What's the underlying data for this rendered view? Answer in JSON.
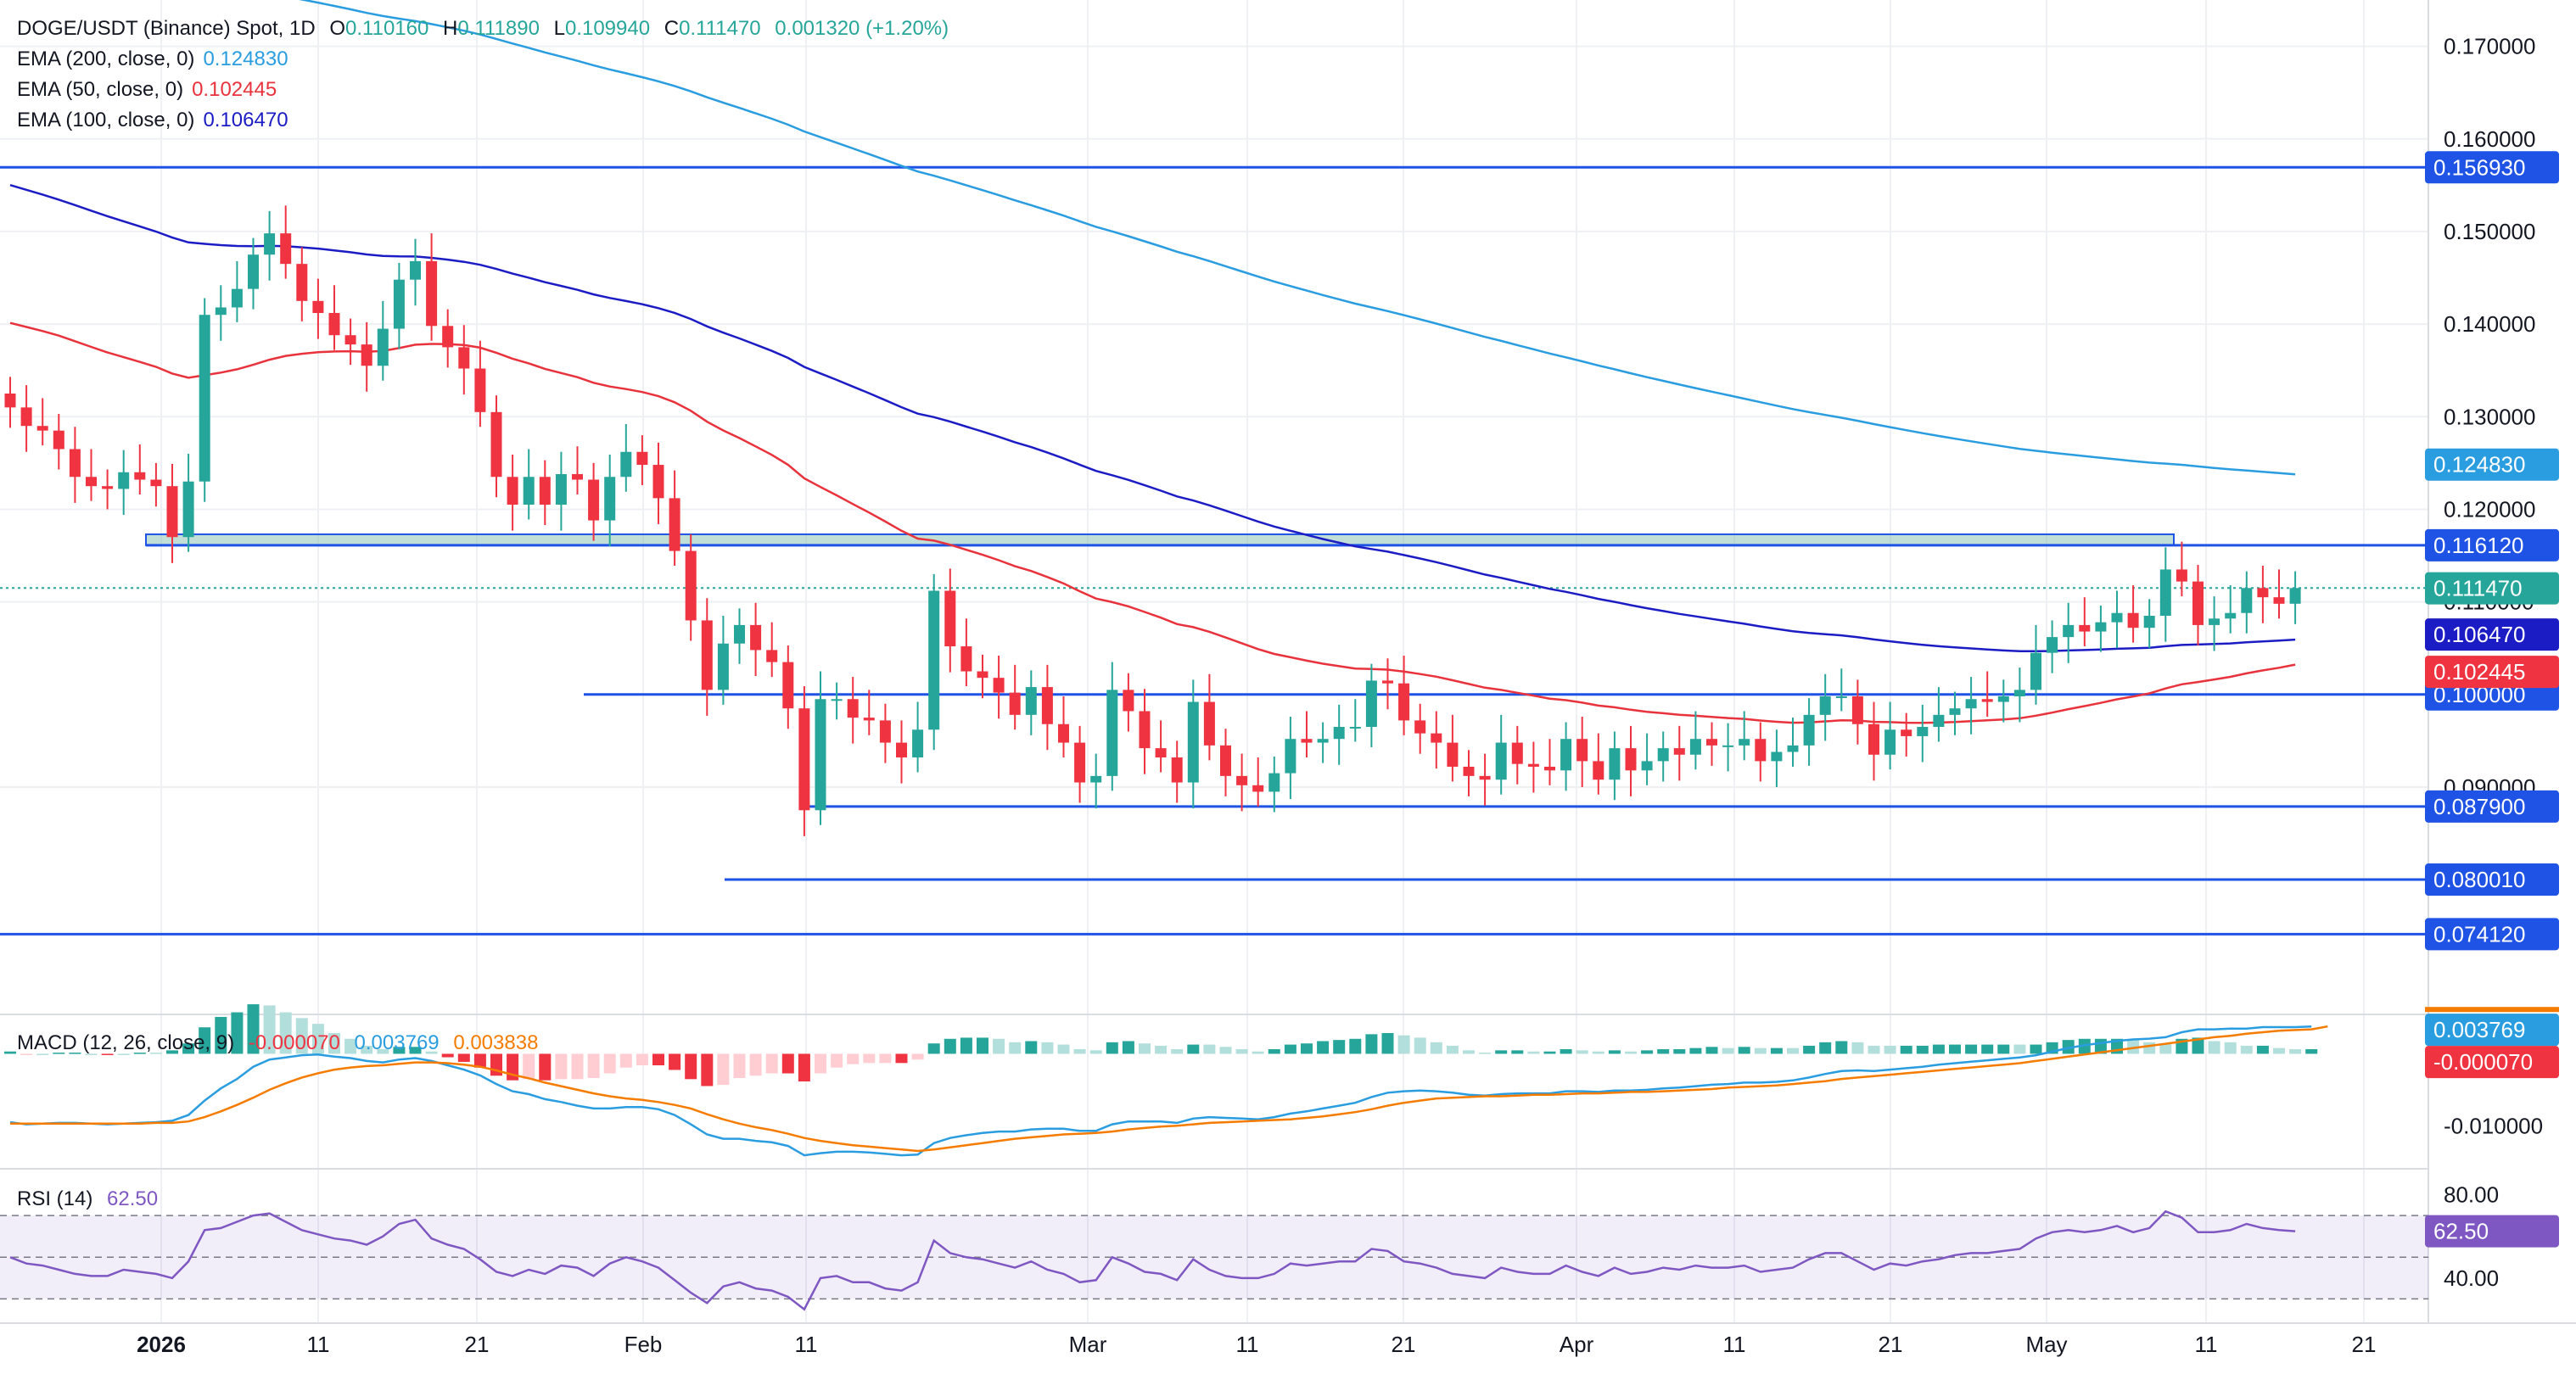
{
  "header": {
    "symbol": "DOGE/USDT (Binance) Spot, 1D",
    "open_label": "O",
    "open": "0.110160",
    "high_label": "H",
    "high": "0.111890",
    "low_label": "L",
    "low": "0.109940",
    "close_label": "C",
    "close": "0.111470",
    "change": "0.001320 (+1.20%)"
  },
  "indicators": {
    "ema200": {
      "label": "EMA (200, close, 0)",
      "value": "0.124830",
      "color": "#2a9de0"
    },
    "ema50": {
      "label": "EMA (50, close, 0)",
      "value": "0.102445",
      "color": "#e8323c"
    },
    "ema100": {
      "label": "EMA (100, close, 0)",
      "value": "0.106470",
      "color": "#1c1cc4"
    },
    "macd": {
      "label": "MACD (12, 26, close, 9)",
      "hist": "-0.000070",
      "macd": "0.003769",
      "signal": "0.003838"
    },
    "rsi": {
      "label": "RSI (14)",
      "value": "62.50"
    }
  },
  "colors": {
    "up": "#26a69a",
    "down": "#ef3340",
    "level": "#1e53e5",
    "zone": "#8ec5b4",
    "rsi": "#7e57c2",
    "macd_line": "#2a9de0",
    "signal_line": "#f57c00"
  },
  "chart_data": {
    "type": "candlestick",
    "x_ticks": [
      "2026",
      "11",
      "21",
      "Feb",
      "11",
      "Mar",
      "11",
      "21",
      "Apr",
      "11",
      "21",
      "May",
      "11",
      "21"
    ],
    "y_ticks": [
      "0.170000",
      "0.160000",
      "0.150000",
      "0.140000",
      "0.130000",
      "0.120000",
      "0.110000",
      "0.090000"
    ],
    "price_scale": {
      "min": 0.066,
      "max": 0.175
    },
    "horizontal_levels": [
      "0.156930",
      "0.116120",
      "0.100000",
      "0.087900",
      "0.080010",
      "0.074120"
    ],
    "level_values": [
      0.15693,
      0.11612,
      0.1,
      0.0879,
      0.08001,
      0.07412
    ],
    "resistance_zone": {
      "low": 0.11612,
      "high": 0.1173
    },
    "price_badges": {
      "ema200": "0.124830",
      "close": "0.111470",
      "ema100": "0.106470",
      "ema50": "0.102445"
    },
    "close_series": [
      0.131,
      0.129,
      0.1285,
      0.1265,
      0.1235,
      0.1225,
      0.1222,
      0.124,
      0.1232,
      0.1225,
      0.117,
      0.123,
      0.141,
      0.1418,
      0.1438,
      0.1475,
      0.1498,
      0.1465,
      0.1425,
      0.1412,
      0.1388,
      0.1378,
      0.1355,
      0.1395,
      0.1448,
      0.1468,
      0.1398,
      0.1375,
      0.1352,
      0.1305,
      0.1235,
      0.1205,
      0.1235,
      0.1205,
      0.1238,
      0.1232,
      0.1188,
      0.1235,
      0.1262,
      0.1248,
      0.1212,
      0.1155,
      0.108,
      0.1005,
      0.1055,
      0.1075,
      0.1048,
      0.1035,
      0.0985,
      0.0875,
      0.0995,
      0.0995,
      0.0975,
      0.0972,
      0.0948,
      0.0932,
      0.0962,
      0.1112,
      0.1052,
      0.1025,
      0.1018,
      0.1002,
      0.0978,
      0.1008,
      0.0968,
      0.0948,
      0.0905,
      0.0912,
      0.1005,
      0.0982,
      0.0942,
      0.0932,
      0.0905,
      0.0992,
      0.0945,
      0.0912,
      0.0902,
      0.0895,
      0.0915,
      0.0952,
      0.0948,
      0.0952,
      0.0965,
      0.0965,
      0.1015,
      0.1012,
      0.0972,
      0.0958,
      0.0948,
      0.0922,
      0.0912,
      0.0908,
      0.0948,
      0.0925,
      0.0922,
      0.0918,
      0.0952,
      0.0928,
      0.0908,
      0.0942,
      0.0918,
      0.0928,
      0.0942,
      0.0935,
      0.0952,
      0.0945,
      0.0945,
      0.0952,
      0.0928,
      0.0938,
      0.0945,
      0.0978,
      0.0998,
      0.0998,
      0.0968,
      0.0935,
      0.0962,
      0.0955,
      0.0965,
      0.0978,
      0.0985,
      0.0995,
      0.0992,
      0.0998,
      0.1005,
      0.1045,
      0.1062,
      0.1075,
      0.1068,
      0.1078,
      0.1088,
      0.1072,
      0.1085,
      0.1135,
      0.1122,
      0.1075,
      0.1082,
      0.1088,
      0.1115,
      0.1105,
      0.1098,
      0.1115
    ],
    "macd_series": [
      -0.0095,
      -0.0098,
      -0.0097,
      -0.0096,
      -0.0096,
      -0.0097,
      -0.0098,
      -0.0097,
      -0.0096,
      -0.0095,
      -0.0093,
      -0.0085,
      -0.0065,
      -0.0048,
      -0.0035,
      -0.0018,
      -0.0008,
      -0.0005,
      -0.0002,
      -0.0001,
      -0.0004,
      -0.0006,
      -0.001,
      -0.0012,
      -0.0008,
      -0.0006,
      -0.001,
      -0.0016,
      -0.0022,
      -0.003,
      -0.0042,
      -0.0052,
      -0.0056,
      -0.0063,
      -0.0067,
      -0.0072,
      -0.0076,
      -0.0076,
      -0.0074,
      -0.0074,
      -0.0077,
      -0.0085,
      -0.0098,
      -0.0112,
      -0.0118,
      -0.0118,
      -0.0121,
      -0.0123,
      -0.0128,
      -0.0141,
      -0.0138,
      -0.0136,
      -0.0136,
      -0.0137,
      -0.0139,
      -0.0141,
      -0.014,
      -0.0124,
      -0.0117,
      -0.0113,
      -0.011,
      -0.0108,
      -0.0108,
      -0.0105,
      -0.0104,
      -0.0104,
      -0.0107,
      -0.0107,
      -0.0098,
      -0.0094,
      -0.0094,
      -0.0094,
      -0.0096,
      -0.009,
      -0.0088,
      -0.0089,
      -0.009,
      -0.0091,
      -0.0088,
      -0.0083,
      -0.008,
      -0.0076,
      -0.0072,
      -0.0068,
      -0.006,
      -0.0054,
      -0.0052,
      -0.0051,
      -0.0052,
      -0.0054,
      -0.0057,
      -0.0058,
      -0.0056,
      -0.0055,
      -0.0055,
      -0.0055,
      -0.0052,
      -0.0052,
      -0.0053,
      -0.0051,
      -0.0051,
      -0.005,
      -0.0048,
      -0.0047,
      -0.0045,
      -0.0043,
      -0.0042,
      -0.004,
      -0.004,
      -0.0039,
      -0.0037,
      -0.0033,
      -0.0028,
      -0.0024,
      -0.0023,
      -0.0024,
      -0.0022,
      -0.002,
      -0.0018,
      -0.0015,
      -0.0013,
      -0.0011,
      -0.0009,
      -0.0007,
      -0.0005,
      -0.0002,
      0.0003,
      0.0008,
      0.0012,
      0.0015,
      0.0018,
      0.002,
      0.0021,
      0.0023,
      0.003,
      0.0034,
      0.0034,
      0.0035,
      0.0035,
      0.0037,
      0.0037,
      0.0037,
      0.0038
    ],
    "signal_series": [
      -0.0097,
      -0.0097,
      -0.0097,
      -0.0097,
      -0.0097,
      -0.0097,
      -0.0097,
      -0.0097,
      -0.0097,
      -0.0096,
      -0.0096,
      -0.0094,
      -0.0088,
      -0.008,
      -0.0071,
      -0.0061,
      -0.005,
      -0.0041,
      -0.0033,
      -0.0027,
      -0.0022,
      -0.0019,
      -0.0017,
      -0.0016,
      -0.0014,
      -0.0012,
      -0.0012,
      -0.0013,
      -0.0015,
      -0.0018,
      -0.0023,
      -0.0029,
      -0.0034,
      -0.004,
      -0.0045,
      -0.005,
      -0.0055,
      -0.0059,
      -0.0062,
      -0.0064,
      -0.0067,
      -0.0071,
      -0.0076,
      -0.0084,
      -0.0091,
      -0.0097,
      -0.0102,
      -0.0106,
      -0.0111,
      -0.0117,
      -0.0121,
      -0.0124,
      -0.0127,
      -0.0129,
      -0.0131,
      -0.0133,
      -0.0135,
      -0.0133,
      -0.013,
      -0.0127,
      -0.0124,
      -0.0121,
      -0.0118,
      -0.0116,
      -0.0114,
      -0.0112,
      -0.0111,
      -0.011,
      -0.0108,
      -0.0105,
      -0.0103,
      -0.0101,
      -0.01,
      -0.0098,
      -0.0096,
      -0.0095,
      -0.0094,
      -0.0093,
      -0.0092,
      -0.0091,
      -0.0089,
      -0.0087,
      -0.0084,
      -0.0081,
      -0.0077,
      -0.0072,
      -0.0068,
      -0.0065,
      -0.0062,
      -0.0061,
      -0.006,
      -0.0059,
      -0.0059,
      -0.0058,
      -0.0057,
      -0.0057,
      -0.0056,
      -0.0055,
      -0.0055,
      -0.0054,
      -0.0053,
      -0.0053,
      -0.0052,
      -0.0051,
      -0.005,
      -0.0049,
      -0.0047,
      -0.0046,
      -0.0045,
      -0.0044,
      -0.0042,
      -0.004,
      -0.0038,
      -0.0035,
      -0.0033,
      -0.0031,
      -0.0029,
      -0.0027,
      -0.0025,
      -0.0023,
      -0.0021,
      -0.0019,
      -0.0017,
      -0.0015,
      -0.0013,
      -0.001,
      -0.0007,
      -0.0004,
      -0.0001,
      0.0002,
      0.0005,
      0.0008,
      0.0011,
      0.0014,
      0.0017,
      0.002,
      0.0023,
      0.0025,
      0.0028,
      0.003,
      0.0032,
      0.0033,
      0.0034,
      0.0038
    ],
    "rsi_series": [
      50,
      47,
      46,
      44,
      42,
      41,
      41,
      44,
      43,
      42,
      40,
      48,
      63,
      64,
      67,
      70,
      71,
      67,
      63,
      61,
      59,
      58,
      56,
      60,
      66,
      68,
      59,
      56,
      54,
      49,
      43,
      41,
      44,
      42,
      46,
      45,
      41,
      47,
      50,
      48,
      45,
      39,
      33,
      28,
      36,
      38,
      35,
      34,
      31,
      25,
      40,
      41,
      38,
      38,
      35,
      34,
      38,
      58,
      52,
      50,
      49,
      47,
      45,
      48,
      44,
      42,
      38,
      39,
      50,
      47,
      43,
      42,
      39,
      49,
      44,
      41,
      40,
      40,
      42,
      47,
      46,
      47,
      48,
      48,
      54,
      53,
      48,
      47,
      45,
      42,
      41,
      40,
      45,
      43,
      42,
      42,
      46,
      43,
      41,
      45,
      42,
      43,
      45,
      44,
      46,
      45,
      45,
      46,
      43,
      44,
      45,
      49,
      52,
      52,
      48,
      44,
      47,
      46,
      48,
      49,
      51,
      52,
      52,
      53,
      54,
      59,
      62,
      63,
      62,
      63,
      65,
      62,
      64,
      72,
      69,
      62,
      62,
      63,
      66,
      64,
      63,
      62.5
    ],
    "rsi_ticks": [
      "80.00",
      "40.00"
    ],
    "macd_ticks": [
      "-0.010000"
    ],
    "macd_badges": {
      "macd": "0.003769",
      "hist": "-0.000070"
    }
  }
}
